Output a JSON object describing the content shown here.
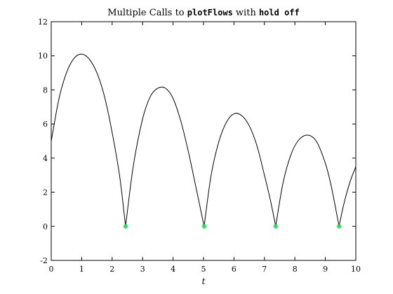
{
  "chart_data": {
    "type": "line",
    "title": {
      "prefix": "Multiple Calls to ",
      "code1": "plotFlows",
      "middle": " with ",
      "code2": "hold off"
    },
    "xlabel": "t",
    "ylabel": "",
    "xlim": [
      0,
      10
    ],
    "ylim": [
      -2,
      12
    ],
    "x_ticks": [
      0,
      1,
      2,
      3,
      4,
      5,
      6,
      7,
      8,
      9,
      10
    ],
    "y_ticks": [
      -2,
      0,
      2,
      4,
      6,
      8,
      10,
      12
    ],
    "grid": false,
    "series": [
      {
        "color": "#000000",
        "style": "solid-line",
        "x": [
          0,
          0.25,
          0.5,
          0.75,
          1.0,
          1.25,
          1.5,
          1.75,
          2.0,
          2.25,
          2.44,
          2.7,
          3.0,
          3.25,
          3.5,
          3.75,
          4.0,
          4.25,
          4.5,
          4.75,
          5.02,
          5.25,
          5.5,
          5.75,
          6.0,
          6.25,
          6.5,
          6.75,
          7.0,
          7.2,
          7.37,
          7.6,
          7.85,
          8.1,
          8.4,
          8.7,
          9.0,
          9.2,
          9.45,
          9.6,
          9.8,
          10.0
        ],
        "y": [
          5.0,
          7.45,
          9.0,
          9.85,
          10.1,
          9.8,
          9.0,
          7.6,
          5.5,
          2.9,
          0.0,
          3.6,
          6.3,
          7.6,
          8.1,
          8.1,
          7.5,
          6.2,
          4.4,
          2.3,
          0.0,
          3.0,
          4.95,
          6.1,
          6.6,
          6.5,
          5.9,
          4.75,
          3.0,
          1.5,
          0.0,
          2.45,
          4.1,
          5.0,
          5.35,
          5.0,
          3.7,
          2.3,
          0.0,
          1.25,
          2.55,
          3.5
        ]
      },
      {
        "color": "#00ee44",
        "style": "asterisk-marker",
        "x": [
          2.44,
          5.02,
          7.37,
          9.45
        ],
        "y": [
          0,
          0,
          0,
          0
        ]
      }
    ]
  }
}
